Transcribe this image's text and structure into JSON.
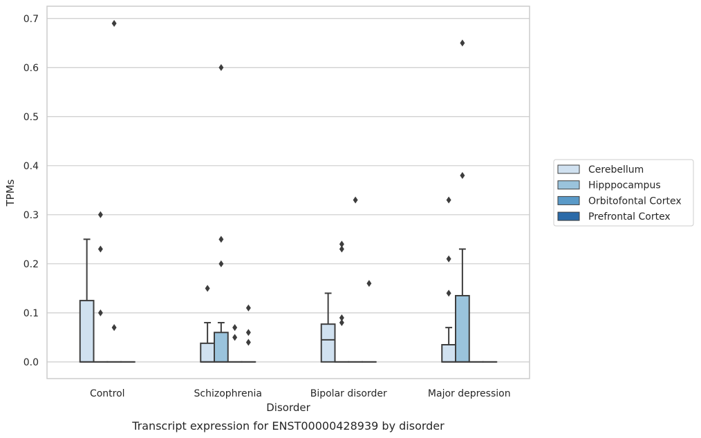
{
  "chart_data": {
    "type": "box",
    "caption": "Transcript expression for ENST00000428939 by disorder",
    "xlabel": "Disorder",
    "ylabel": "TPMs",
    "ylim": [
      -0.034,
      0.725
    ],
    "yticks": [
      "0.0",
      "0.1",
      "0.2",
      "0.3",
      "0.4",
      "0.5",
      "0.6",
      "0.7"
    ],
    "grid": "horizontal",
    "legend_position": "right",
    "categories": [
      "Control",
      "Schizophrenia",
      "Bipolar disorder",
      "Major depression"
    ],
    "series": [
      {
        "name": "Cerebellum",
        "color": "#d0e1f0",
        "boxes": [
          {
            "q1": 0.0,
            "median": 0.0,
            "q3": 0.125,
            "whisker_low": 0.0,
            "whisker_high": 0.25,
            "outliers": []
          },
          {
            "q1": 0.0,
            "median": 0.0,
            "q3": 0.038,
            "whisker_low": 0.0,
            "whisker_high": 0.08,
            "outliers": [
              0.15
            ]
          },
          {
            "q1": 0.0,
            "median": 0.045,
            "q3": 0.077,
            "whisker_low": 0.0,
            "whisker_high": 0.14,
            "outliers": []
          },
          {
            "q1": 0.0,
            "median": 0.0,
            "q3": 0.035,
            "whisker_low": 0.0,
            "whisker_high": 0.07,
            "outliers": [
              0.14,
              0.21,
              0.33
            ]
          }
        ]
      },
      {
        "name": "Hipppocampus",
        "color": "#9ac3dc",
        "boxes": [
          {
            "q1": 0.0,
            "median": 0.0,
            "q3": 0.0,
            "whisker_low": 0.0,
            "whisker_high": 0.0,
            "outliers": [
              0.1,
              0.23,
              0.3
            ]
          },
          {
            "q1": 0.0,
            "median": 0.0,
            "q3": 0.06,
            "whisker_low": 0.0,
            "whisker_high": 0.08,
            "outliers": [
              0.2,
              0.25,
              0.6
            ]
          },
          {
            "q1": 0.0,
            "median": 0.0,
            "q3": 0.0,
            "whisker_low": 0.0,
            "whisker_high": 0.0,
            "outliers": [
              0.08,
              0.09,
              0.23,
              0.24
            ]
          },
          {
            "q1": 0.0,
            "median": 0.0,
            "q3": 0.135,
            "whisker_low": 0.0,
            "whisker_high": 0.23,
            "outliers": [
              0.38,
              0.65
            ]
          }
        ]
      },
      {
        "name": "Orbitofontal Cortex",
        "color": "#5a9ac8",
        "boxes": [
          {
            "q1": 0.0,
            "median": 0.0,
            "q3": 0.0,
            "whisker_low": 0.0,
            "whisker_high": 0.0,
            "outliers": [
              0.07,
              0.69
            ]
          },
          {
            "q1": 0.0,
            "median": 0.0,
            "q3": 0.0,
            "whisker_low": 0.0,
            "whisker_high": 0.0,
            "outliers": [
              0.05,
              0.07
            ]
          },
          {
            "q1": 0.0,
            "median": 0.0,
            "q3": 0.0,
            "whisker_low": 0.0,
            "whisker_high": 0.0,
            "outliers": [
              0.33
            ]
          },
          {
            "q1": 0.0,
            "median": 0.0,
            "q3": 0.0,
            "whisker_low": 0.0,
            "whisker_high": 0.0,
            "outliers": []
          }
        ]
      },
      {
        "name": "Prefrontal Cortex",
        "color": "#2a6aa8",
        "boxes": [
          {
            "q1": 0.0,
            "median": 0.0,
            "q3": 0.0,
            "whisker_low": 0.0,
            "whisker_high": 0.0,
            "outliers": []
          },
          {
            "q1": 0.0,
            "median": 0.0,
            "q3": 0.0,
            "whisker_low": 0.0,
            "whisker_high": 0.0,
            "outliers": [
              0.04,
              0.06,
              0.11
            ]
          },
          {
            "q1": 0.0,
            "median": 0.0,
            "q3": 0.0,
            "whisker_low": 0.0,
            "whisker_high": 0.0,
            "outliers": [
              0.16
            ]
          },
          {
            "q1": 0.0,
            "median": 0.0,
            "q3": 0.0,
            "whisker_low": 0.0,
            "whisker_high": 0.0,
            "outliers": []
          }
        ]
      }
    ]
  }
}
